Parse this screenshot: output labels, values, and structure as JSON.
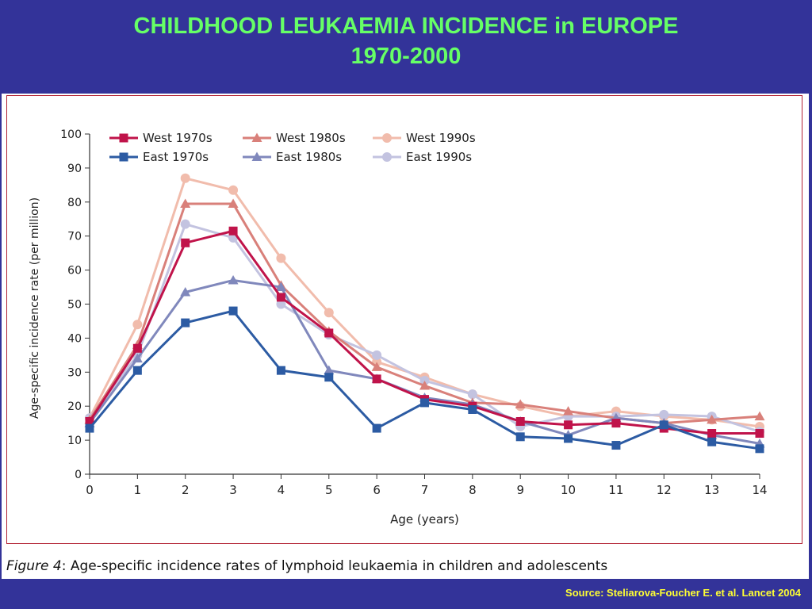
{
  "slide": {
    "title_line1": "CHILDHOOD LEUKAEMIA INCIDENCE in EUROPE",
    "title_line2": "1970-2000",
    "source": "Source: Steliarova-Foucher E. et al. Lancet 2004"
  },
  "caption": {
    "label": "Figure 4",
    "text": ": Age-specific incidence rates of lymphoid leukaemia in children and adolescents"
  },
  "colors": {
    "background": "#333399",
    "title": "#66ff66",
    "source": "#ffff33",
    "frame": "#b22234"
  },
  "chart_data": {
    "type": "line",
    "xlabel": "Age (years)",
    "ylabel": "Age-specific incidence rate (per million)",
    "x": [
      0,
      1,
      2,
      3,
      4,
      5,
      6,
      7,
      8,
      9,
      10,
      11,
      12,
      13,
      14
    ],
    "xlim": [
      0,
      14
    ],
    "ylim": [
      0,
      100
    ],
    "yticks": [
      0,
      10,
      20,
      30,
      40,
      50,
      60,
      70,
      80,
      90,
      100
    ],
    "grid": false,
    "legend_position": "top-left",
    "series": [
      {
        "name": "West 1970s",
        "color": "#c0134a",
        "marker": "square",
        "values": [
          15.5,
          37,
          68,
          71.5,
          52,
          41.5,
          28,
          22,
          20,
          15.5,
          14.5,
          15,
          13.5,
          12,
          12
        ]
      },
      {
        "name": "West 1980s",
        "color": "#d9807a",
        "marker": "triangle",
        "values": [
          16,
          38,
          79.5,
          79.5,
          55.5,
          42,
          31.5,
          26,
          21,
          20.5,
          18.5,
          16.5,
          15,
          16,
          17
        ]
      },
      {
        "name": "West 1990s",
        "color": "#f1bcac",
        "marker": "circle",
        "values": [
          16.5,
          44,
          87,
          83.5,
          63.5,
          47.5,
          33,
          28.5,
          23.5,
          20,
          17,
          18.5,
          17,
          16,
          14
        ]
      },
      {
        "name": "East 1970s",
        "color": "#2c5ba3",
        "marker": "square",
        "values": [
          13.5,
          30.5,
          44.5,
          48,
          30.5,
          28.5,
          13.5,
          21,
          19,
          11,
          10.5,
          8.5,
          14.5,
          9.5,
          7.5
        ]
      },
      {
        "name": "East 1980s",
        "color": "#8088bc",
        "marker": "triangle",
        "values": [
          15,
          34,
          53.5,
          57,
          55,
          30.5,
          28,
          22.5,
          20.5,
          15.5,
          11.5,
          16.5,
          15,
          11.5,
          9
        ]
      },
      {
        "name": "East 1990s",
        "color": "#c3c3e0",
        "marker": "circle",
        "values": [
          16.5,
          35,
          73.5,
          69.5,
          50,
          41,
          35,
          27.5,
          23.5,
          14,
          17,
          17,
          17.5,
          17,
          12.5
        ]
      }
    ]
  }
}
